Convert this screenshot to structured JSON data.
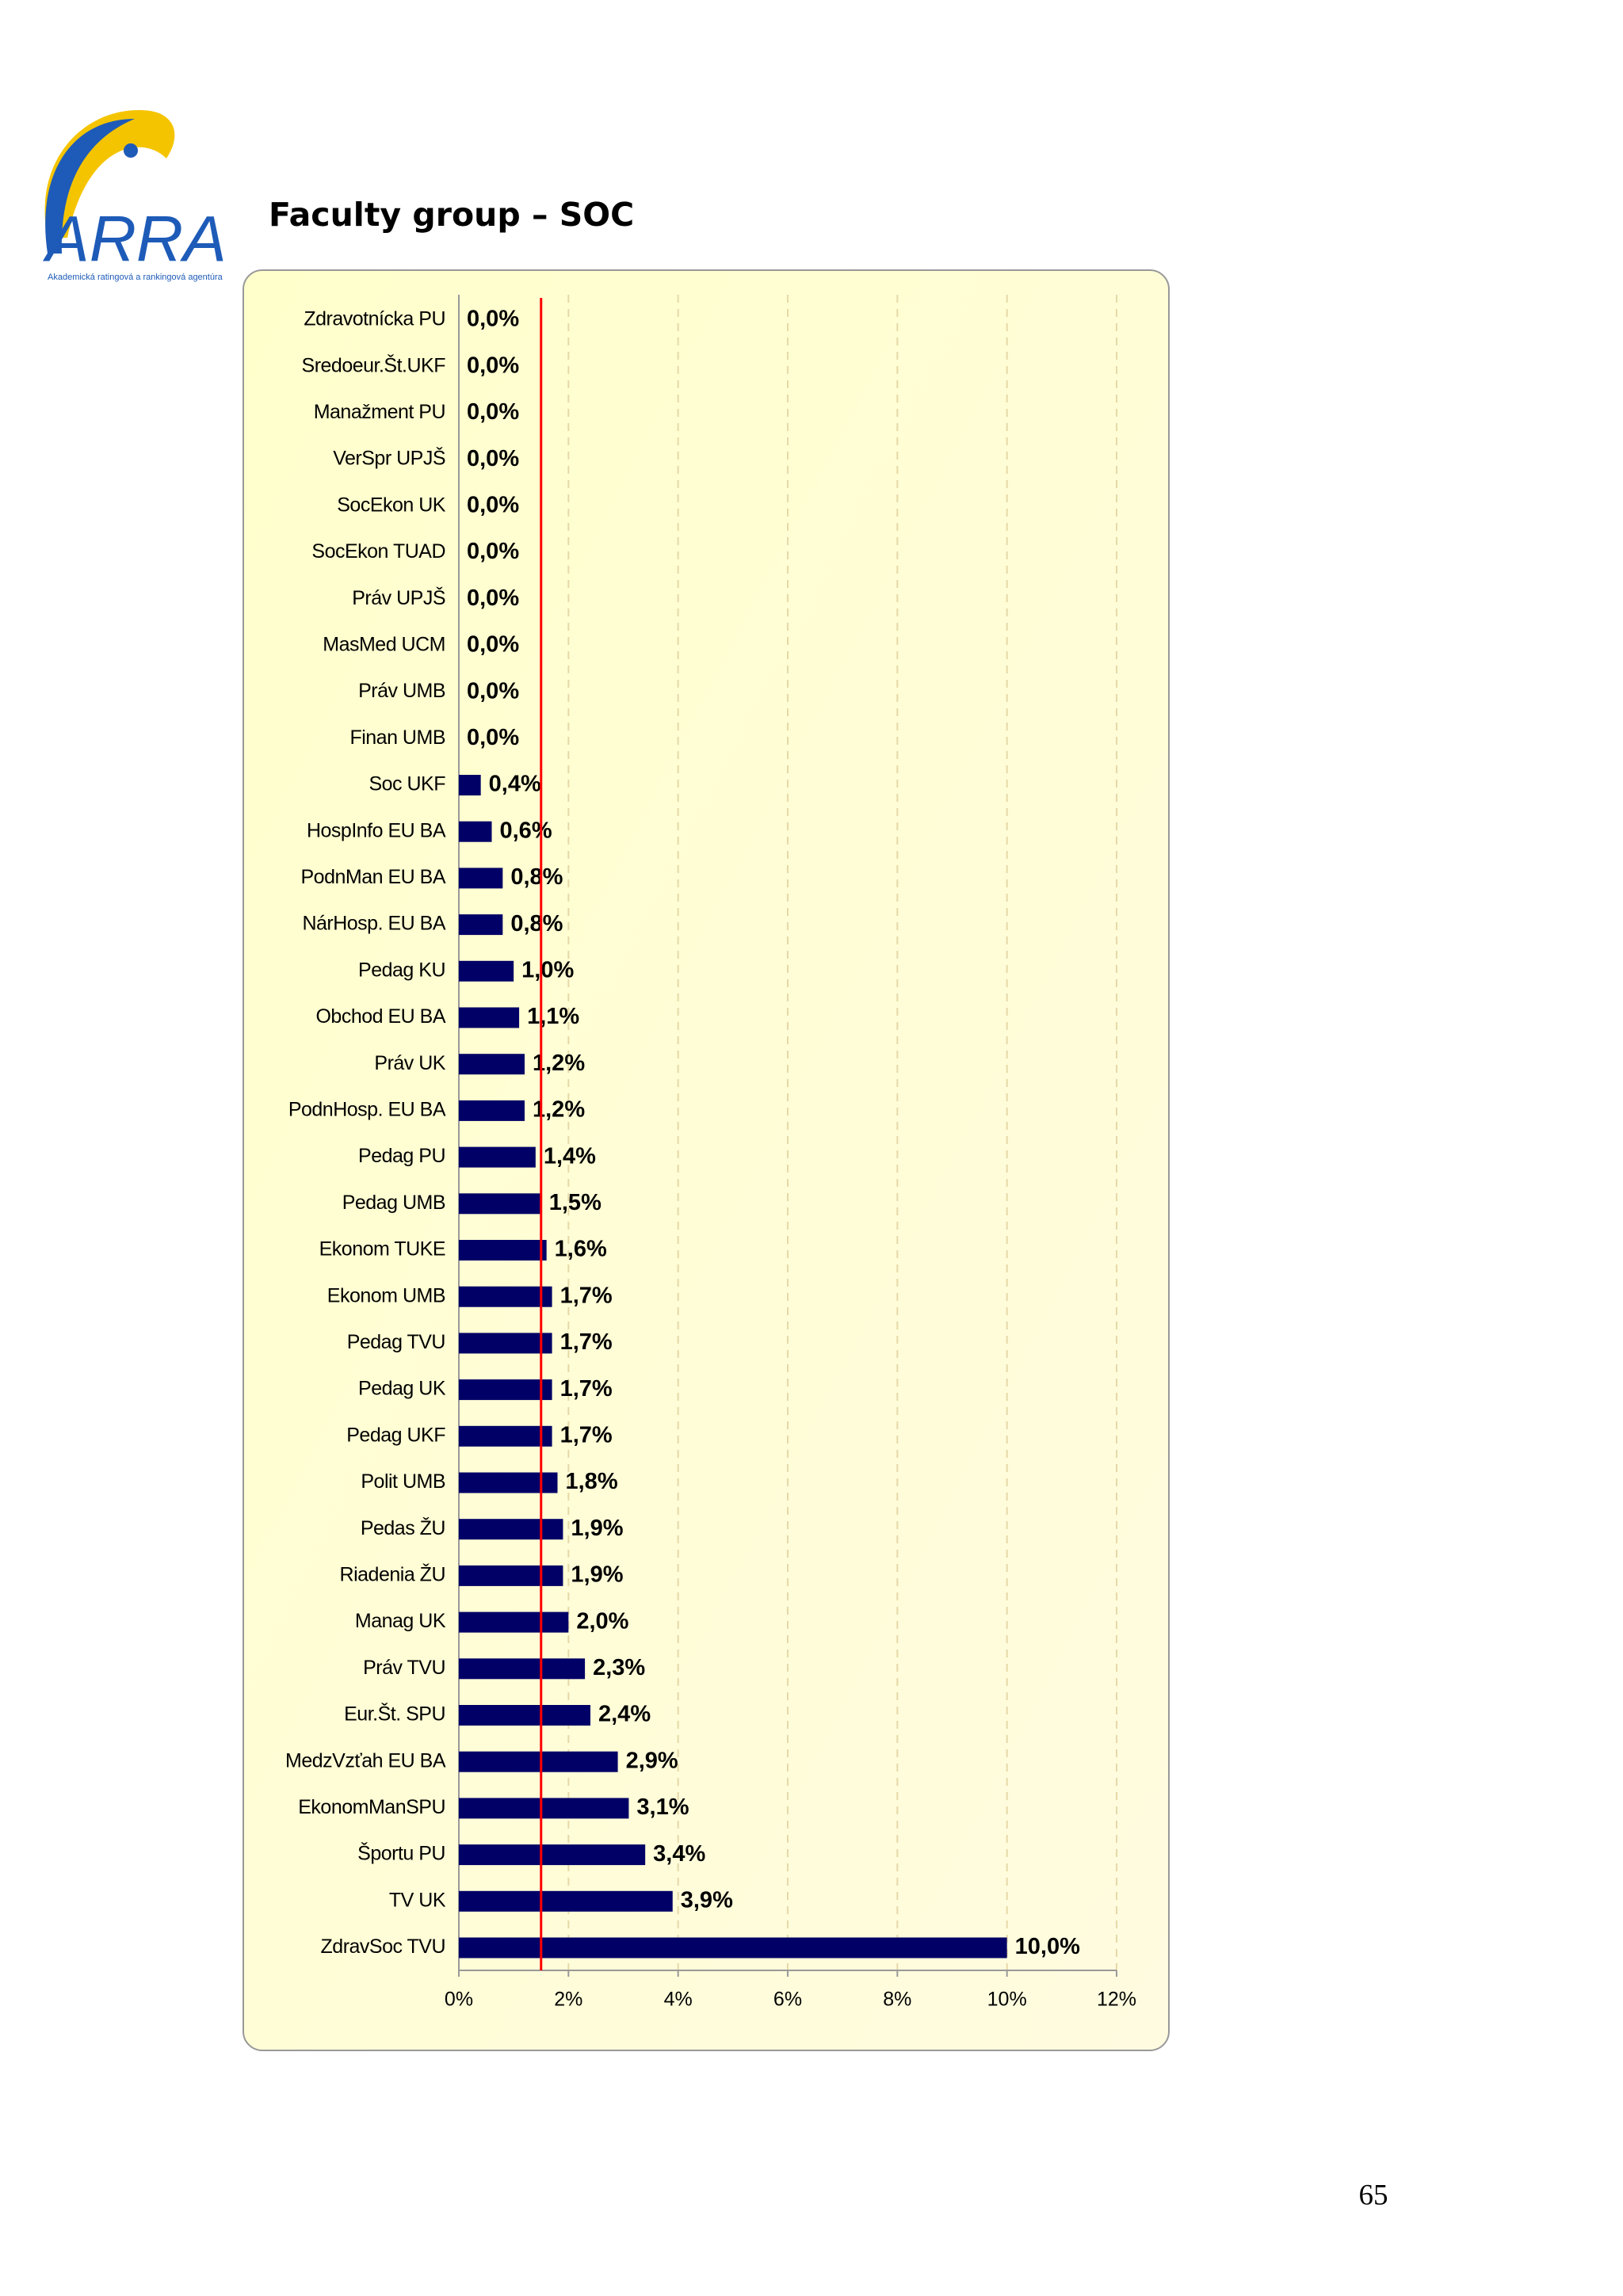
{
  "header": {
    "logo_text": "ARRA",
    "logo_tagline": "Akademická ratingová a rankingová agentúra",
    "title": "Faculty group – SOC"
  },
  "page_number": "65",
  "chart_data": {
    "type": "barh",
    "categories": [
      "Zdravotnícka PU",
      "Sredoeur.Št.UKF",
      "Manažment PU",
      "VerSpr UPJŠ",
      "SocEkon UK",
      "SocEkon TUAD",
      "Práv UPJŠ",
      "MasMed UCM",
      "Práv UMB",
      "Finan UMB",
      "Soc UKF",
      "HospInfo EU BA",
      "PodnMan EU BA",
      "NárHosp. EU BA",
      "Pedag KU",
      "Obchod EU BA",
      "Práv UK",
      "PodnHosp. EU BA",
      "Pedag PU",
      "Pedag UMB",
      "Ekonom TUKE",
      "Ekonom UMB",
      "Pedag TVU",
      "Pedag UK",
      "Pedag UKF",
      "Polit UMB",
      "Pedas ŽU",
      "Riadenia  ŽU",
      "Manag UK",
      "Práv TVU",
      "Eur.Št. SPU",
      "MedzVzťah EU BA",
      "EkonomManSPU",
      "Športu PU",
      "TV  UK",
      "ZdravSoc TVU"
    ],
    "values": [
      0,
      0,
      0,
      0,
      0,
      0,
      0,
      0,
      0,
      0,
      0.4,
      0.6,
      0.8,
      0.8,
      1.0,
      1.1,
      1.2,
      1.2,
      1.4,
      1.5,
      1.6,
      1.7,
      1.7,
      1.7,
      1.7,
      1.8,
      1.9,
      1.9,
      2.0,
      2.3,
      2.4,
      2.9,
      3.1,
      3.4,
      3.9,
      10.0
    ],
    "value_labels": [
      "0,0%",
      "0,0%",
      "0,0%",
      "0,0%",
      "0,0%",
      "0,0%",
      "0,0%",
      "0,0%",
      "0,0%",
      "0,0%",
      "0,4%",
      "0,6%",
      "0,8%",
      "0,8%",
      "1,0%",
      "1,1%",
      "1,2%",
      "1,2%",
      "1,4%",
      "1,5%",
      "1,6%",
      "1,7%",
      "1,7%",
      "1,7%",
      "1,7%",
      "1,8%",
      "1,9%",
      "1,9%",
      "2,0%",
      "2,3%",
      "2,4%",
      "2,9%",
      "3,1%",
      "3,4%",
      "3,9%",
      "10,0%"
    ],
    "color": "#000066",
    "xlim": [
      0,
      12
    ],
    "xticks": [
      {
        "value": 0,
        "label": "0%"
      },
      {
        "value": 2,
        "label": "2%"
      },
      {
        "value": 4,
        "label": "4%"
      },
      {
        "value": 6,
        "label": "6%"
      },
      {
        "value": 8,
        "label": "8%"
      },
      {
        "value": 10,
        "label": "10%"
      },
      {
        "value": 12,
        "label": "12%"
      }
    ],
    "grid": true,
    "reference_line": {
      "value": 1.5,
      "color": "#ff0000"
    }
  }
}
